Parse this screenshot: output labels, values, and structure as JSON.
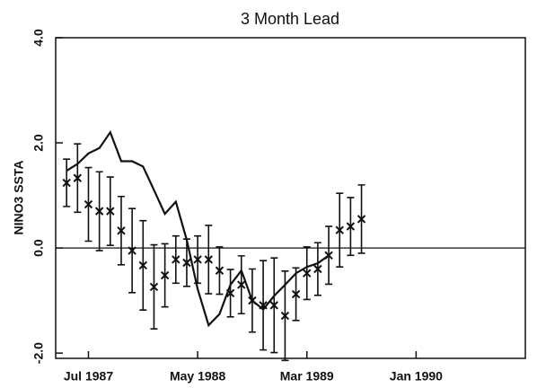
{
  "chart_data": {
    "type": "line",
    "title": "3 Month Lead",
    "y_label": "NINO3 SSTA",
    "x": [
      "1987-05",
      "1987-06",
      "1987-07",
      "1987-08",
      "1987-09",
      "1987-10",
      "1987-11",
      "1987-12",
      "1988-01",
      "1988-02",
      "1988-03",
      "1988-04",
      "1988-05",
      "1988-06",
      "1988-07",
      "1988-08",
      "1988-09",
      "1988-10",
      "1988-11",
      "1988-12",
      "1989-01",
      "1989-02",
      "1989-03",
      "1989-04",
      "1989-05",
      "1989-06",
      "1989-07",
      "1989-08"
    ],
    "series": [
      {
        "color": "#111111",
        "values": [
          1.47,
          1.6,
          1.8,
          1.9,
          2.2,
          1.65,
          1.65,
          1.55,
          1.1,
          0.65,
          0.88,
          0.15,
          -0.78,
          -1.47,
          -1.26,
          -0.7,
          -0.43,
          -1.0,
          -1.17,
          -0.91,
          -0.7,
          -0.48,
          -0.36,
          -0.29,
          -0.14,
          null,
          null,
          null
        ]
      },
      {
        "color": "#111111",
        "values": [
          1.24,
          1.33,
          0.83,
          0.7,
          0.7,
          0.33,
          -0.05,
          -0.33,
          -0.74,
          -0.52,
          -0.22,
          -0.28,
          -0.22,
          -0.22,
          -0.43,
          -0.86,
          -0.7,
          -1.0,
          -1.09,
          -1.09,
          -1.29,
          -0.88,
          -0.48,
          -0.4,
          -0.14,
          0.34,
          0.41,
          0.55
        ],
        "errors": [
          0.45,
          0.65,
          0.7,
          0.75,
          0.65,
          0.65,
          0.8,
          0.85,
          0.8,
          0.6,
          0.45,
          0.45,
          0.45,
          0.65,
          0.45,
          0.45,
          0.55,
          0.6,
          0.85,
          0.9,
          0.85,
          0.5,
          0.5,
          0.5,
          0.55,
          0.7,
          0.55,
          0.65
        ]
      }
    ],
    "xlim": [
      "1987-04",
      "1990-11"
    ],
    "xticks": [
      {
        "value": "1987-07",
        "label": "Jul 1987"
      },
      {
        "value": "1988-05",
        "label": "May 1988"
      },
      {
        "value": "1989-03",
        "label": "Mar 1989"
      },
      {
        "value": "1990-01",
        "label": "Jan 1990"
      }
    ],
    "ylim": [
      -2.1,
      4.0
    ],
    "yticks": [
      {
        "value": 4,
        "label": "4.0"
      },
      {
        "value": 2,
        "label": "2.0"
      },
      {
        "value": 0,
        "label": "0.0"
      },
      {
        "value": -2,
        "label": "-2.0"
      }
    ]
  }
}
